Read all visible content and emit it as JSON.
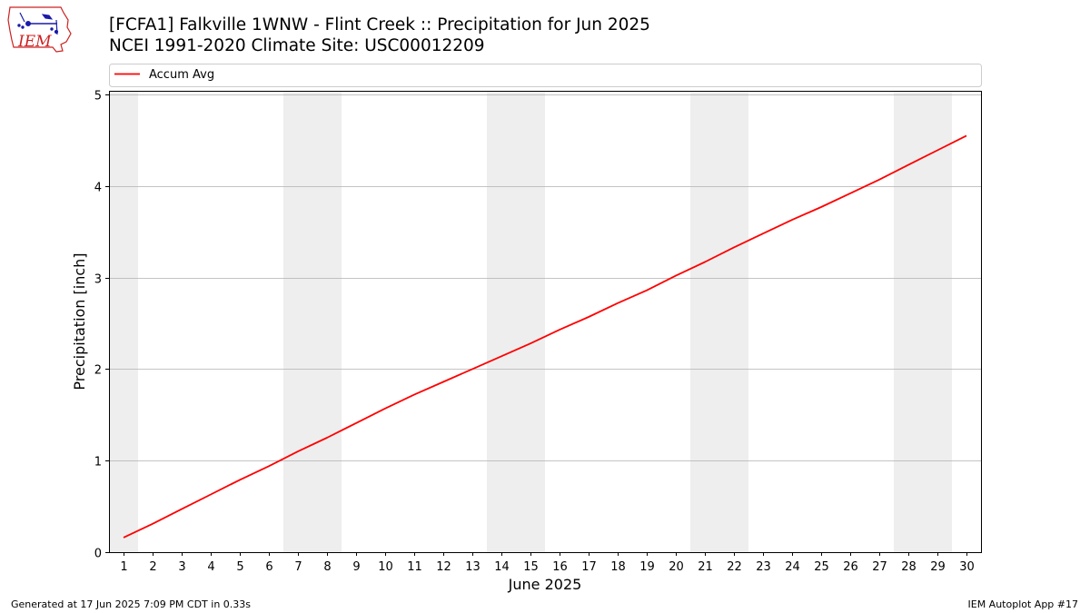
{
  "header": {
    "logo_text": "IEM",
    "title_line1": "[FCFA1] Falkville 1WNW - Flint Creek :: Precipitation for Jun 2025",
    "title_line2": "NCEI 1991-2020 Climate Site: USC00012209"
  },
  "footer": {
    "left": "Generated at 17 Jun 2025 7:09 PM CDT in 0.33s",
    "right": "IEM Autoplot App #17"
  },
  "chart_data": {
    "type": "line",
    "title": "",
    "xlabel": "June 2025",
    "ylabel": "Precipitation [inch]",
    "x": [
      1,
      2,
      3,
      4,
      5,
      6,
      7,
      8,
      9,
      10,
      11,
      12,
      13,
      14,
      15,
      16,
      17,
      18,
      19,
      20,
      21,
      22,
      23,
      24,
      25,
      26,
      27,
      28,
      29,
      30
    ],
    "xlim": [
      0.5,
      30.5
    ],
    "ylim": [
      0,
      5.04
    ],
    "yticks": [
      0,
      1,
      2,
      3,
      4,
      5
    ],
    "grid": "horizontal",
    "legend_placement": "top, outside plot",
    "weekend_shading": [
      [
        0.5,
        1.5
      ],
      [
        6.5,
        8.5
      ],
      [
        13.5,
        15.5
      ],
      [
        20.5,
        22.5
      ],
      [
        27.5,
        29.5
      ]
    ],
    "series": [
      {
        "name": "Accum Avg",
        "color": "#ff0000",
        "values": [
          0.16,
          0.31,
          0.47,
          0.63,
          0.79,
          0.94,
          1.1,
          1.25,
          1.41,
          1.57,
          1.72,
          1.86,
          2.0,
          2.14,
          2.28,
          2.43,
          2.57,
          2.72,
          2.86,
          3.02,
          3.17,
          3.33,
          3.48,
          3.63,
          3.77,
          3.92,
          4.07,
          4.23,
          4.39,
          4.55
        ]
      }
    ]
  },
  "colors": {
    "shading": "#eeeeee",
    "grid": "#b0b0b0",
    "line": "#ff0000",
    "logo_red": "#cc2222",
    "logo_blue": "#1a1aaa"
  }
}
